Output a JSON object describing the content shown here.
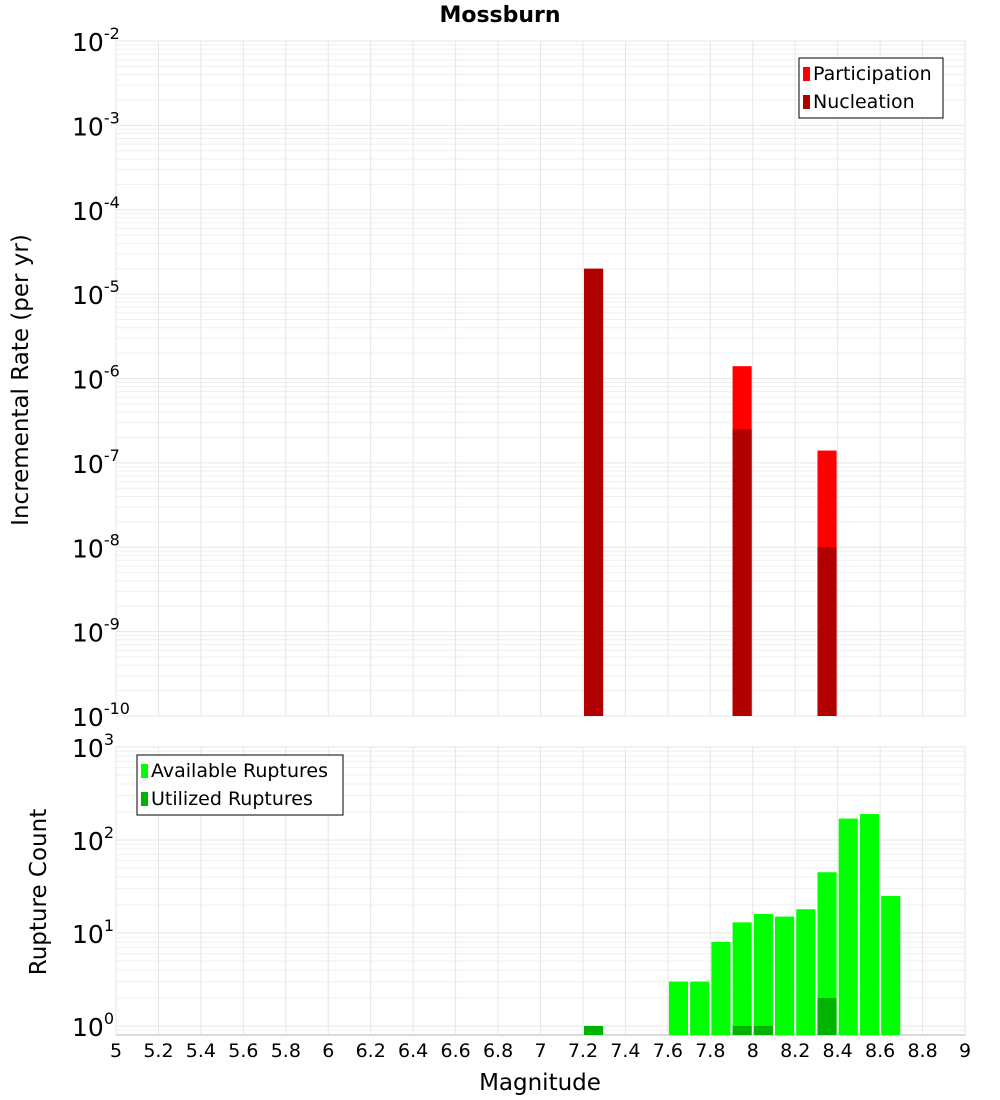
{
  "chart_data": [
    {
      "type": "bar",
      "title": "Mossburn",
      "xlabel": "",
      "ylabel": "Incremental Rate (per yr)",
      "xlim": [
        5,
        9
      ],
      "ylim": [
        1e-10,
        0.01
      ],
      "yscale": "log",
      "grid": true,
      "legend_position": "top-right",
      "y_ticks": [
        {
          "base": "10",
          "exp": "-10"
        },
        {
          "base": "10",
          "exp": "-9"
        },
        {
          "base": "10",
          "exp": "-8"
        },
        {
          "base": "10",
          "exp": "-7"
        },
        {
          "base": "10",
          "exp": "-6"
        },
        {
          "base": "10",
          "exp": "-5"
        },
        {
          "base": "10",
          "exp": "-4"
        },
        {
          "base": "10",
          "exp": "-3"
        },
        {
          "base": "10",
          "exp": "-2"
        }
      ],
      "series": [
        {
          "name": "Participation",
          "color": "#ff0000",
          "points": [
            {
              "x": 7.25,
              "y": 2e-05
            },
            {
              "x": 7.95,
              "y": 1.4e-06
            },
            {
              "x": 8.35,
              "y": 1.4e-07
            }
          ]
        },
        {
          "name": "Nucleation",
          "color": "#b00000",
          "points": [
            {
              "x": 7.25,
              "y": 2e-05
            },
            {
              "x": 7.95,
              "y": 2.5e-07
            },
            {
              "x": 8.35,
              "y": 1e-08
            }
          ]
        }
      ]
    },
    {
      "type": "bar",
      "title": "",
      "xlabel": "Magnitude",
      "ylabel": "Rupture Count",
      "xlim": [
        5,
        9
      ],
      "ylim": [
        0.8,
        1000
      ],
      "yscale": "log",
      "grid": true,
      "legend_position": "top-left",
      "x_ticks": [
        "5",
        "5.2",
        "5.4",
        "5.6",
        "5.8",
        "6",
        "6.2",
        "6.4",
        "6.6",
        "6.8",
        "7",
        "7.2",
        "7.4",
        "7.6",
        "7.8",
        "8",
        "8.2",
        "8.4",
        "8.6",
        "8.8",
        "9"
      ],
      "y_ticks": [
        {
          "base": "10",
          "exp": "0"
        },
        {
          "base": "10",
          "exp": "1"
        },
        {
          "base": "10",
          "exp": "2"
        },
        {
          "base": "10",
          "exp": "3"
        }
      ],
      "series": [
        {
          "name": "Available Ruptures",
          "color": "#00ff00",
          "points": [
            {
              "x": 7.65,
              "y": 3
            },
            {
              "x": 7.75,
              "y": 3
            },
            {
              "x": 7.85,
              "y": 8
            },
            {
              "x": 7.95,
              "y": 13
            },
            {
              "x": 8.05,
              "y": 16
            },
            {
              "x": 8.15,
              "y": 15
            },
            {
              "x": 8.25,
              "y": 18
            },
            {
              "x": 8.35,
              "y": 45
            },
            {
              "x": 8.45,
              "y": 170
            },
            {
              "x": 8.55,
              "y": 190
            },
            {
              "x": 8.65,
              "y": 25
            }
          ]
        },
        {
          "name": "Utilized Ruptures",
          "color": "#00b300",
          "points": [
            {
              "x": 7.25,
              "y": 1
            },
            {
              "x": 7.95,
              "y": 1
            },
            {
              "x": 8.05,
              "y": 1
            },
            {
              "x": 8.35,
              "y": 2
            }
          ]
        }
      ]
    }
  ]
}
